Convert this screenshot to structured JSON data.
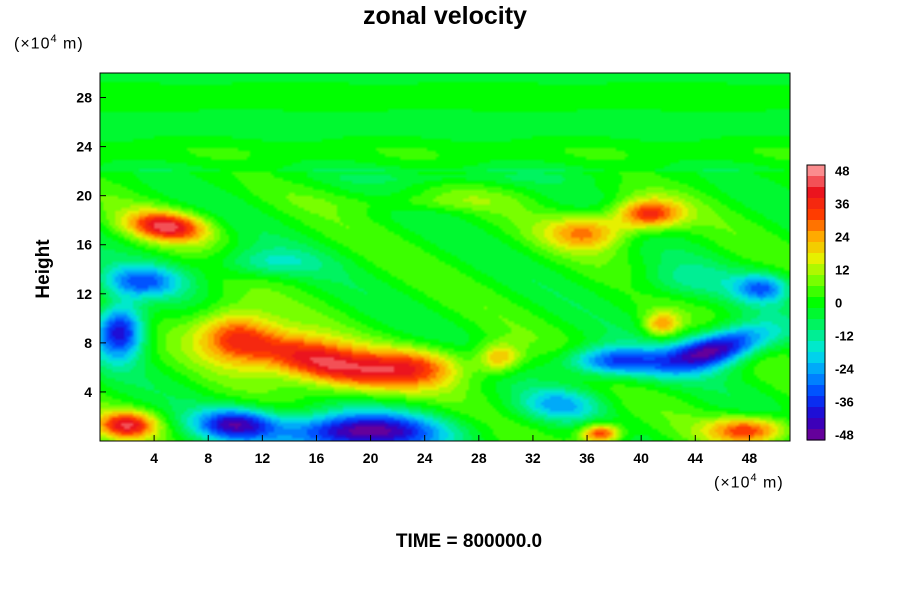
{
  "chart_data": {
    "type": "heatmap",
    "title": "zonal velocity",
    "ylabel": "Height",
    "x_unit_prefix": "(×10",
    "x_unit_exp": "4",
    "x_unit_suffix": " m)",
    "y_unit_prefix": "(×10",
    "y_unit_exp": "4",
    "y_unit_suffix": " m)",
    "xlim": [
      0,
      51
    ],
    "ylim": [
      0,
      30
    ],
    "x_ticks": [
      4,
      8,
      12,
      16,
      20,
      24,
      28,
      32,
      36,
      40,
      44,
      48
    ],
    "y_ticks": [
      4,
      8,
      12,
      16,
      20,
      24,
      28
    ],
    "colorbar": {
      "min": -50,
      "max": 50,
      "ticks": [
        48,
        36,
        24,
        12,
        0,
        -12,
        -24,
        -36,
        -48
      ]
    },
    "features": [
      {
        "x": 16,
        "y": 6.5,
        "value": 46,
        "sx": 5,
        "sy": 1.8,
        "rot": -0.28
      },
      {
        "x": 10,
        "y": 8.5,
        "value": 32,
        "sx": 3,
        "sy": 2.2,
        "rot": -0.2
      },
      {
        "x": 23,
        "y": 6,
        "value": 30,
        "sx": 4,
        "sy": 1.6,
        "rot": 0
      },
      {
        "x": 5,
        "y": 17.5,
        "value": 40,
        "sx": 3,
        "sy": 1.2,
        "rot": -0.1
      },
      {
        "x": 40.5,
        "y": 18.5,
        "value": 36,
        "sx": 2.5,
        "sy": 1.2,
        "rot": 0
      },
      {
        "x": 36,
        "y": 17,
        "value": 26,
        "sx": 3,
        "sy": 1.4,
        "rot": 0
      },
      {
        "x": 29.5,
        "y": 6.8,
        "value": 24,
        "sx": 1.6,
        "sy": 1.2,
        "rot": 0
      },
      {
        "x": 2,
        "y": 1.3,
        "value": 38,
        "sx": 2.2,
        "sy": 1.1,
        "rot": 0
      },
      {
        "x": 37,
        "y": 0.6,
        "value": 38,
        "sx": 1.5,
        "sy": 0.8,
        "rot": 0
      },
      {
        "x": 48,
        "y": 0.9,
        "value": 34,
        "sx": 3,
        "sy": 1.1,
        "rot": 0
      },
      {
        "x": 19,
        "y": 0.7,
        "value": -50,
        "sx": 6,
        "sy": 1.6,
        "rot": 0
      },
      {
        "x": 10,
        "y": 1.4,
        "value": -38,
        "sx": 3,
        "sy": 1.3,
        "rot": 0
      },
      {
        "x": 45.5,
        "y": 7.5,
        "value": -50,
        "sx": 4,
        "sy": 1.4,
        "rot": 0.3
      },
      {
        "x": 38,
        "y": 6.5,
        "value": -36,
        "sx": 3.5,
        "sy": 1.2,
        "rot": 0
      },
      {
        "x": 1.5,
        "y": 9,
        "value": -44,
        "sx": 1.8,
        "sy": 2.2,
        "rot": 0
      },
      {
        "x": 3,
        "y": 13,
        "value": -28,
        "sx": 3,
        "sy": 1.3,
        "rot": 0
      },
      {
        "x": 49,
        "y": 12.5,
        "value": -28,
        "sx": 2,
        "sy": 1.2,
        "rot": 0
      },
      {
        "x": 34,
        "y": 3,
        "value": -20,
        "sx": 3,
        "sy": 1.3,
        "rot": 0
      },
      {
        "x": 41.5,
        "y": 9.5,
        "value": 24,
        "sx": 1.3,
        "sy": 1.0,
        "rot": 0
      },
      {
        "x": 12,
        "y": 14.5,
        "value": -14,
        "sx": 4,
        "sy": 1.2,
        "rot": 0
      },
      {
        "x": 43,
        "y": 13,
        "value": -10,
        "sx": 4,
        "sy": 1.5,
        "rot": 0
      },
      {
        "x": 24,
        "y": 19.5,
        "value": 8,
        "sx": 6,
        "sy": 0.8,
        "rot": 0
      },
      {
        "x": 26,
        "y": 21.5,
        "value": -6,
        "sx": 10,
        "sy": 0.6,
        "rot": 0
      }
    ]
  },
  "footer": {
    "time_label": "TIME = 800000.0"
  }
}
